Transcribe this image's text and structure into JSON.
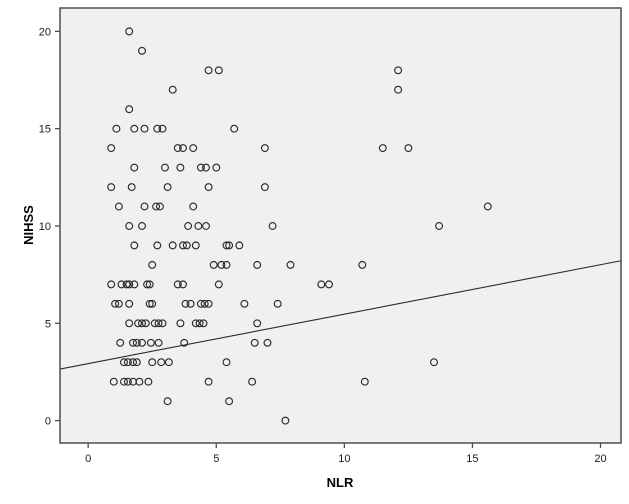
{
  "chart_data": {
    "type": "scatter",
    "title": "",
    "xlabel": "NLR",
    "ylabel": "NIHSS",
    "xlim": [
      -1.1,
      20.8
    ],
    "ylim": [
      -1.15,
      21.2
    ],
    "x_ticks": [
      0,
      5,
      10,
      15,
      20
    ],
    "y_ticks": [
      0,
      5,
      10,
      15,
      20
    ],
    "grid": false,
    "legend": "none",
    "plot_bg_color": "#f0f0ee",
    "frame_color": "#4d4d4d",
    "marker": {
      "shape": "open-circle",
      "stroke_color": "#2b2b2b",
      "radius_px": 3.4
    },
    "trend_line": {
      "slope": 0.254,
      "intercept": 2.93,
      "x_start": -1.1,
      "x_end": 20.8,
      "color": "#2b2b2b"
    },
    "points": [
      [
        1.6,
        20
      ],
      [
        2.1,
        19
      ],
      [
        4.7,
        18
      ],
      [
        5.1,
        18
      ],
      [
        12.1,
        18
      ],
      [
        3.3,
        17
      ],
      [
        12.1,
        17
      ],
      [
        1.6,
        16
      ],
      [
        1.1,
        15
      ],
      [
        1.8,
        15
      ],
      [
        2.2,
        15
      ],
      [
        2.7,
        15
      ],
      [
        2.9,
        15
      ],
      [
        5.7,
        15
      ],
      [
        0.9,
        14
      ],
      [
        3.5,
        14
      ],
      [
        3.7,
        14
      ],
      [
        4.1,
        14
      ],
      [
        6.9,
        14
      ],
      [
        11.5,
        14
      ],
      [
        12.5,
        14
      ],
      [
        1.8,
        13
      ],
      [
        3.0,
        13
      ],
      [
        3.6,
        13
      ],
      [
        4.4,
        13
      ],
      [
        4.6,
        13
      ],
      [
        5.0,
        13
      ],
      [
        0.9,
        12
      ],
      [
        1.7,
        12
      ],
      [
        3.1,
        12
      ],
      [
        4.7,
        12
      ],
      [
        6.9,
        12
      ],
      [
        1.2,
        11
      ],
      [
        2.2,
        11
      ],
      [
        2.65,
        11
      ],
      [
        2.8,
        11
      ],
      [
        4.1,
        11
      ],
      [
        15.6,
        11
      ],
      [
        1.6,
        10
      ],
      [
        2.1,
        10
      ],
      [
        3.9,
        10
      ],
      [
        4.3,
        10
      ],
      [
        4.6,
        10
      ],
      [
        7.2,
        10
      ],
      [
        13.7,
        10
      ],
      [
        1.8,
        9
      ],
      [
        2.7,
        9
      ],
      [
        3.3,
        9
      ],
      [
        3.7,
        9
      ],
      [
        3.85,
        9
      ],
      [
        4.2,
        9
      ],
      [
        5.4,
        9
      ],
      [
        5.5,
        9
      ],
      [
        5.9,
        9
      ],
      [
        2.5,
        8
      ],
      [
        4.9,
        8
      ],
      [
        5.2,
        8
      ],
      [
        5.4,
        8
      ],
      [
        6.6,
        8
      ],
      [
        7.9,
        8
      ],
      [
        10.7,
        8
      ],
      [
        0.9,
        7
      ],
      [
        1.3,
        7
      ],
      [
        1.5,
        7
      ],
      [
        1.6,
        7
      ],
      [
        1.8,
        7
      ],
      [
        2.3,
        7
      ],
      [
        2.4,
        7
      ],
      [
        3.5,
        7
      ],
      [
        3.7,
        7
      ],
      [
        5.1,
        7
      ],
      [
        9.1,
        7
      ],
      [
        9.4,
        7
      ],
      [
        1.05,
        6
      ],
      [
        1.2,
        6
      ],
      [
        1.6,
        6
      ],
      [
        2.4,
        6
      ],
      [
        2.5,
        6
      ],
      [
        3.8,
        6
      ],
      [
        4.0,
        6
      ],
      [
        4.4,
        6
      ],
      [
        4.55,
        6
      ],
      [
        4.7,
        6
      ],
      [
        6.1,
        6
      ],
      [
        7.4,
        6
      ],
      [
        1.6,
        5
      ],
      [
        1.95,
        5
      ],
      [
        2.1,
        5
      ],
      [
        2.25,
        5
      ],
      [
        2.6,
        5
      ],
      [
        2.75,
        5
      ],
      [
        2.9,
        5
      ],
      [
        3.6,
        5
      ],
      [
        4.2,
        5
      ],
      [
        4.35,
        5
      ],
      [
        4.5,
        5
      ],
      [
        6.6,
        5
      ],
      [
        1.25,
        4
      ],
      [
        1.75,
        4
      ],
      [
        1.9,
        4
      ],
      [
        2.1,
        4
      ],
      [
        2.45,
        4
      ],
      [
        2.75,
        4
      ],
      [
        3.75,
        4
      ],
      [
        6.5,
        4
      ],
      [
        7.0,
        4
      ],
      [
        1.4,
        3
      ],
      [
        1.55,
        3
      ],
      [
        1.75,
        3
      ],
      [
        1.9,
        3
      ],
      [
        2.5,
        3
      ],
      [
        2.85,
        3
      ],
      [
        3.15,
        3
      ],
      [
        5.4,
        3
      ],
      [
        13.5,
        3
      ],
      [
        1.0,
        2
      ],
      [
        1.4,
        2
      ],
      [
        1.55,
        2
      ],
      [
        1.75,
        2
      ],
      [
        2.0,
        2
      ],
      [
        2.35,
        2
      ],
      [
        4.7,
        2
      ],
      [
        6.4,
        2
      ],
      [
        10.8,
        2
      ],
      [
        3.1,
        1
      ],
      [
        5.5,
        1
      ],
      [
        7.7,
        0
      ]
    ]
  }
}
